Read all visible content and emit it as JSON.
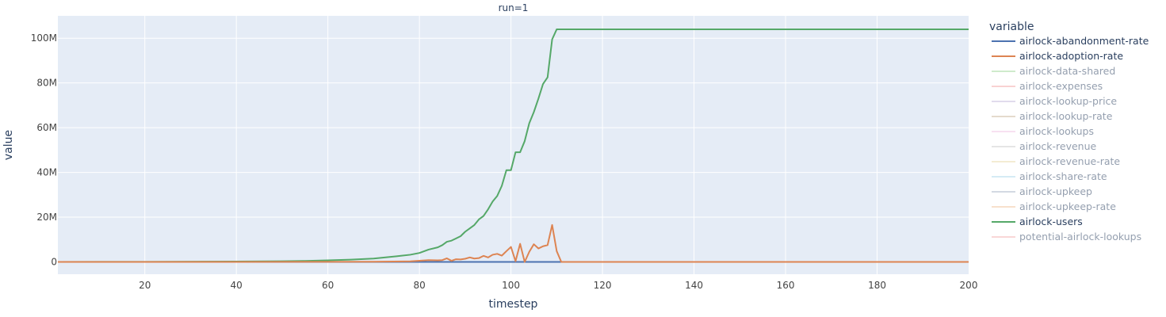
{
  "chart_data": {
    "type": "line",
    "facet_title": "run=1",
    "xlabel": "timestep",
    "ylabel": "value",
    "xlim": [
      1,
      200
    ],
    "ylim": [
      -5500000,
      110000000
    ],
    "x_ticks": [
      20,
      40,
      60,
      80,
      100,
      120,
      140,
      160,
      180,
      200
    ],
    "y_ticks": [
      {
        "value": 0,
        "label": "0"
      },
      {
        "value": 20000000,
        "label": "20M"
      },
      {
        "value": 40000000,
        "label": "40M"
      },
      {
        "value": 60000000,
        "label": "60M"
      },
      {
        "value": 80000000,
        "label": "80M"
      },
      {
        "value": 100000000,
        "label": "100M"
      }
    ],
    "grid": true,
    "legend_title": "variable",
    "legend_placement": "right",
    "series": [
      {
        "name": "airlock-abandonment-rate",
        "color": "#4c72b0",
        "visible": true,
        "points": [
          [
            1,
            0
          ],
          [
            200,
            0
          ]
        ]
      },
      {
        "name": "airlock-adoption-rate",
        "color": "#dd8452",
        "visible": true,
        "points": [
          [
            1,
            0
          ],
          [
            40,
            0
          ],
          [
            60,
            30000
          ],
          [
            70,
            100000
          ],
          [
            78,
            250000
          ],
          [
            80,
            500000
          ],
          [
            82,
            800000
          ],
          [
            84,
            700000
          ],
          [
            85,
            800000
          ],
          [
            86,
            1600000
          ],
          [
            87,
            500000
          ],
          [
            88,
            1200000
          ],
          [
            89,
            1100000
          ],
          [
            90,
            1400000
          ],
          [
            91,
            2000000
          ],
          [
            92,
            1500000
          ],
          [
            93,
            1700000
          ],
          [
            94,
            2700000
          ],
          [
            95,
            2000000
          ],
          [
            96,
            3200000
          ],
          [
            97,
            3600000
          ],
          [
            98,
            2800000
          ],
          [
            99,
            4800000
          ],
          [
            100,
            6700000
          ],
          [
            101,
            300000
          ],
          [
            102,
            8100000
          ],
          [
            103,
            0
          ],
          [
            104,
            4500000
          ],
          [
            105,
            7900000
          ],
          [
            106,
            6000000
          ],
          [
            107,
            7000000
          ],
          [
            108,
            7500000
          ],
          [
            109,
            16500000
          ],
          [
            110,
            4800000
          ],
          [
            111,
            0
          ],
          [
            200,
            0
          ]
        ]
      },
      {
        "name": "airlock-data-shared",
        "color": "#a1d99b",
        "visible": false,
        "points": []
      },
      {
        "name": "airlock-expenses",
        "color": "#f4a6a6",
        "visible": false,
        "points": []
      },
      {
        "name": "airlock-lookup-price",
        "color": "#c5b8dc",
        "visible": false,
        "points": []
      },
      {
        "name": "airlock-lookup-rate",
        "color": "#cdb99c",
        "visible": false,
        "points": []
      },
      {
        "name": "airlock-lookups",
        "color": "#f2c4e4",
        "visible": false,
        "points": []
      },
      {
        "name": "airlock-revenue",
        "color": "#cccccc",
        "visible": false,
        "points": []
      },
      {
        "name": "airlock-revenue-rate",
        "color": "#eadaa8",
        "visible": false,
        "points": []
      },
      {
        "name": "airlock-share-rate",
        "color": "#acd8ec",
        "visible": false,
        "points": []
      },
      {
        "name": "airlock-upkeep",
        "color": "#a9b4c9",
        "visible": false,
        "points": []
      },
      {
        "name": "airlock-upkeep-rate",
        "color": "#f3c49a",
        "visible": false,
        "points": []
      },
      {
        "name": "airlock-users",
        "color": "#55a868",
        "visible": true,
        "points": [
          [
            1,
            0
          ],
          [
            20,
            50000
          ],
          [
            40,
            150000
          ],
          [
            50,
            300000
          ],
          [
            55,
            450000
          ],
          [
            60,
            700000
          ],
          [
            65,
            1000000
          ],
          [
            70,
            1500000
          ],
          [
            75,
            2500000
          ],
          [
            78,
            3200000
          ],
          [
            80,
            4000000
          ],
          [
            82,
            5500000
          ],
          [
            84,
            6500000
          ],
          [
            85,
            7500000
          ],
          [
            86,
            9000000
          ],
          [
            87,
            9500000
          ],
          [
            88,
            10500000
          ],
          [
            89,
            11500000
          ],
          [
            90,
            13500000
          ],
          [
            91,
            15000000
          ],
          [
            92,
            16500000
          ],
          [
            93,
            19000000
          ],
          [
            94,
            20500000
          ],
          [
            95,
            23500000
          ],
          [
            96,
            27000000
          ],
          [
            97,
            29500000
          ],
          [
            98,
            34000000
          ],
          [
            99,
            41000000
          ],
          [
            100,
            41000000
          ],
          [
            101,
            49000000
          ],
          [
            102,
            49000000
          ],
          [
            103,
            54000000
          ],
          [
            104,
            62000000
          ],
          [
            105,
            67000000
          ],
          [
            106,
            73000000
          ],
          [
            107,
            79500000
          ],
          [
            108,
            82500000
          ],
          [
            109,
            99500000
          ],
          [
            110,
            104000000
          ],
          [
            200,
            104000000
          ]
        ]
      },
      {
        "name": "potential-airlock-lookups",
        "color": "#f4b0b0",
        "visible": false,
        "points": []
      }
    ]
  }
}
